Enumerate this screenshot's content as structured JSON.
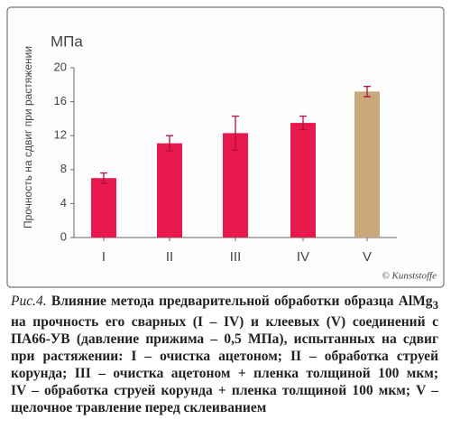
{
  "chart_data": {
    "type": "bar",
    "y_unit": "МПа",
    "y_label": "Прочность на сдвиг при растяжении",
    "categories": [
      "I",
      "II",
      "III",
      "IV",
      "V"
    ],
    "values": [
      7.0,
      11.1,
      12.3,
      13.5,
      17.2
    ],
    "errors": [
      0.6,
      0.9,
      2.0,
      0.8,
      0.6
    ],
    "colors": [
      "#e8194c",
      "#e8194c",
      "#e8194c",
      "#e8194c",
      "#c9a97c"
    ],
    "ylim": [
      0,
      20
    ],
    "yticks": [
      0,
      4,
      8,
      12,
      16,
      20
    ],
    "credit": "© Kunststoffe"
  },
  "caption": {
    "figure_label": "Рис.4.",
    "title": "Влияние метода предварительной обработки образца AlMg",
    "title_subscript": "3",
    "lines": [
      "на прочность его сварных (I – IV) и клеевых (V) соединений с",
      "ПА66-УВ (давление прижима – 0,5 МПа), испытанных на сдвиг",
      "при растяжении: I – очистка ацетоном; II – обработка струей",
      "корунда; III – очистка ацетоном + пленка толщиной 100 мкм;",
      "IV – обработка струей корунда + пленка толщиной 100 мкм; V –",
      "щелочное травление перед склеиванием"
    ]
  }
}
